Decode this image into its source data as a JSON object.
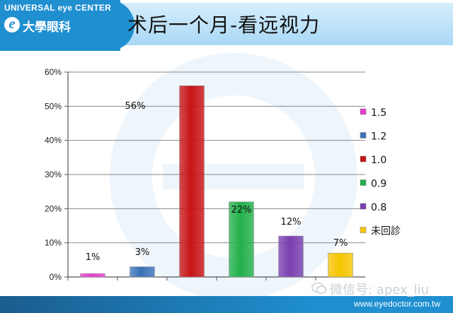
{
  "header": {
    "brand_top": "UNIVERSAL eye CENTER",
    "brand_logo_letter": "e",
    "brand_name": "大學眼科",
    "title": "术后一个月-看远视力"
  },
  "footer": {
    "url": "www.eyedoctor.com.tw",
    "watermark": "微信号: apex_liu"
  },
  "colors": {
    "header_blue": "#1f8fd0",
    "footer_dark": "#1a5d8f"
  },
  "chart_data": {
    "type": "bar",
    "categories": [
      "1.5",
      "1.2",
      "1.0",
      "0.9",
      "0.8",
      "未回診"
    ],
    "values": [
      1,
      3,
      56,
      22,
      12,
      7
    ],
    "value_unit": "%",
    "data_labels": [
      "1%",
      "3%",
      "56%",
      "22%",
      "12%",
      "7%"
    ],
    "colors": [
      "#e83bd0",
      "#3a72b8",
      "#c81416",
      "#22b04a",
      "#7a3fb0",
      "#f6c400"
    ],
    "yticks": [
      "0%",
      "10%",
      "20%",
      "30%",
      "40%",
      "50%",
      "60%"
    ],
    "ylim": [
      0,
      60
    ],
    "grid": true,
    "legend": {
      "placement": "right",
      "entries": [
        "1.5",
        "1.2",
        "1.0",
        "0.9",
        "0.8",
        "未回診"
      ]
    },
    "title": "",
    "xlabel": "",
    "ylabel": ""
  }
}
